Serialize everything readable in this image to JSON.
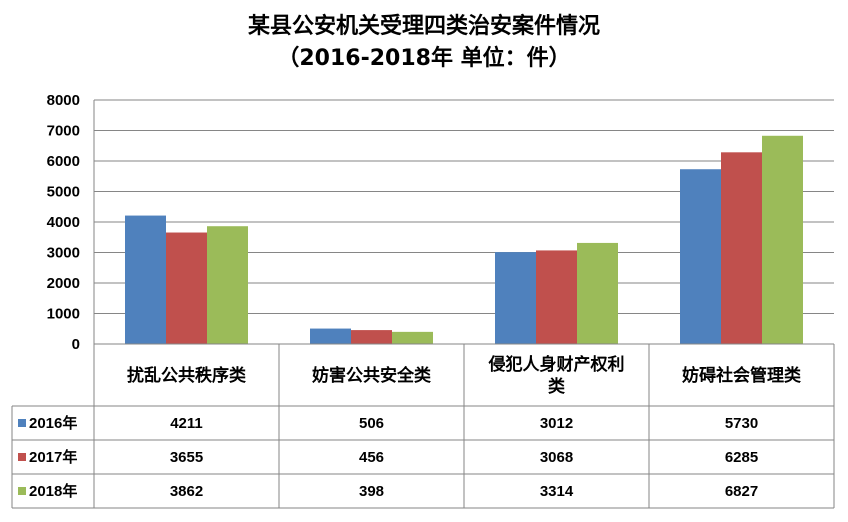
{
  "chart_data": {
    "type": "bar",
    "title": "某县公安机关受理四类治安案件情况",
    "subtitle": "（2016-2018年  单位：件）",
    "categories": [
      "扰乱公共秩序类",
      "妨害公共安全类",
      "侵犯人身财产权利类",
      "妨碍社会管理类"
    ],
    "category_lines": [
      [
        "扰乱公共秩序类"
      ],
      [
        "妨害公共安全类"
      ],
      [
        "侵犯人身财产权利",
        "类"
      ],
      [
        "妨碍社会管理类"
      ]
    ],
    "series": [
      {
        "name": "2016年",
        "color": "#4F81BD",
        "values": [
          4211,
          506,
          3012,
          5730
        ]
      },
      {
        "name": "2017年",
        "color": "#C0504D",
        "values": [
          3655,
          456,
          3068,
          6285
        ]
      },
      {
        "name": "2018年",
        "color": "#9BBB59",
        "values": [
          3862,
          398,
          3314,
          6827
        ]
      }
    ],
    "ylim": [
      0,
      8000
    ],
    "yticks": [
      0,
      1000,
      2000,
      3000,
      4000,
      5000,
      6000,
      7000,
      8000
    ],
    "grid": true,
    "legend": "data-table"
  }
}
